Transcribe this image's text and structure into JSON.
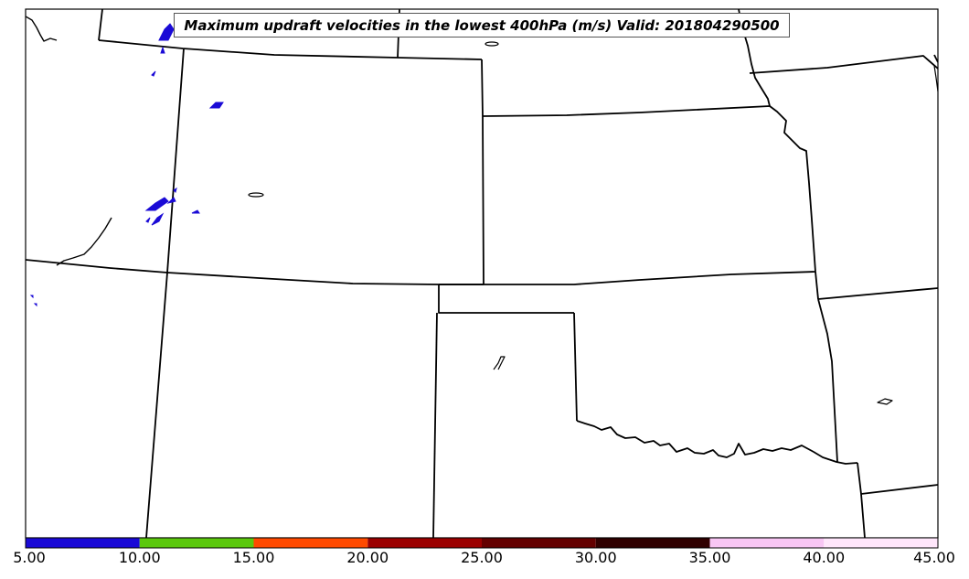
{
  "map": {
    "title": "Maximum updraft velocities in the lowest 400hPa (m/s) Valid: 201804290500",
    "boundary_color": "#000000",
    "updraft_contour_color": "#1a0ad6"
  },
  "colorbar": {
    "min": 5.0,
    "max": 45.0,
    "segments": [
      {
        "from": 5,
        "to": 10,
        "color": "#1a0ad6"
      },
      {
        "from": 10,
        "to": 15,
        "color": "#5bc80d"
      },
      {
        "from": 15,
        "to": 20,
        "color": "#ff4a00"
      },
      {
        "from": 20,
        "to": 25,
        "color": "#9b0000"
      },
      {
        "from": 25,
        "to": 30,
        "color": "#640000"
      },
      {
        "from": 30,
        "to": 35,
        "color": "#300000"
      },
      {
        "from": 35,
        "to": 40,
        "color": "#f8c6f4"
      },
      {
        "from": 40,
        "to": 45,
        "color": "#ffe6fb"
      }
    ],
    "ticks": [
      {
        "value": 5,
        "label": "5.00"
      },
      {
        "value": 10,
        "label": "10.00"
      },
      {
        "value": 15,
        "label": "15.00"
      },
      {
        "value": 20,
        "label": "20.00"
      },
      {
        "value": 25,
        "label": "25.00"
      },
      {
        "value": 30,
        "label": "30.00"
      },
      {
        "value": 35,
        "label": "35.00"
      },
      {
        "value": 40,
        "label": "40.00"
      },
      {
        "value": 45,
        "label": "45.00"
      }
    ]
  }
}
